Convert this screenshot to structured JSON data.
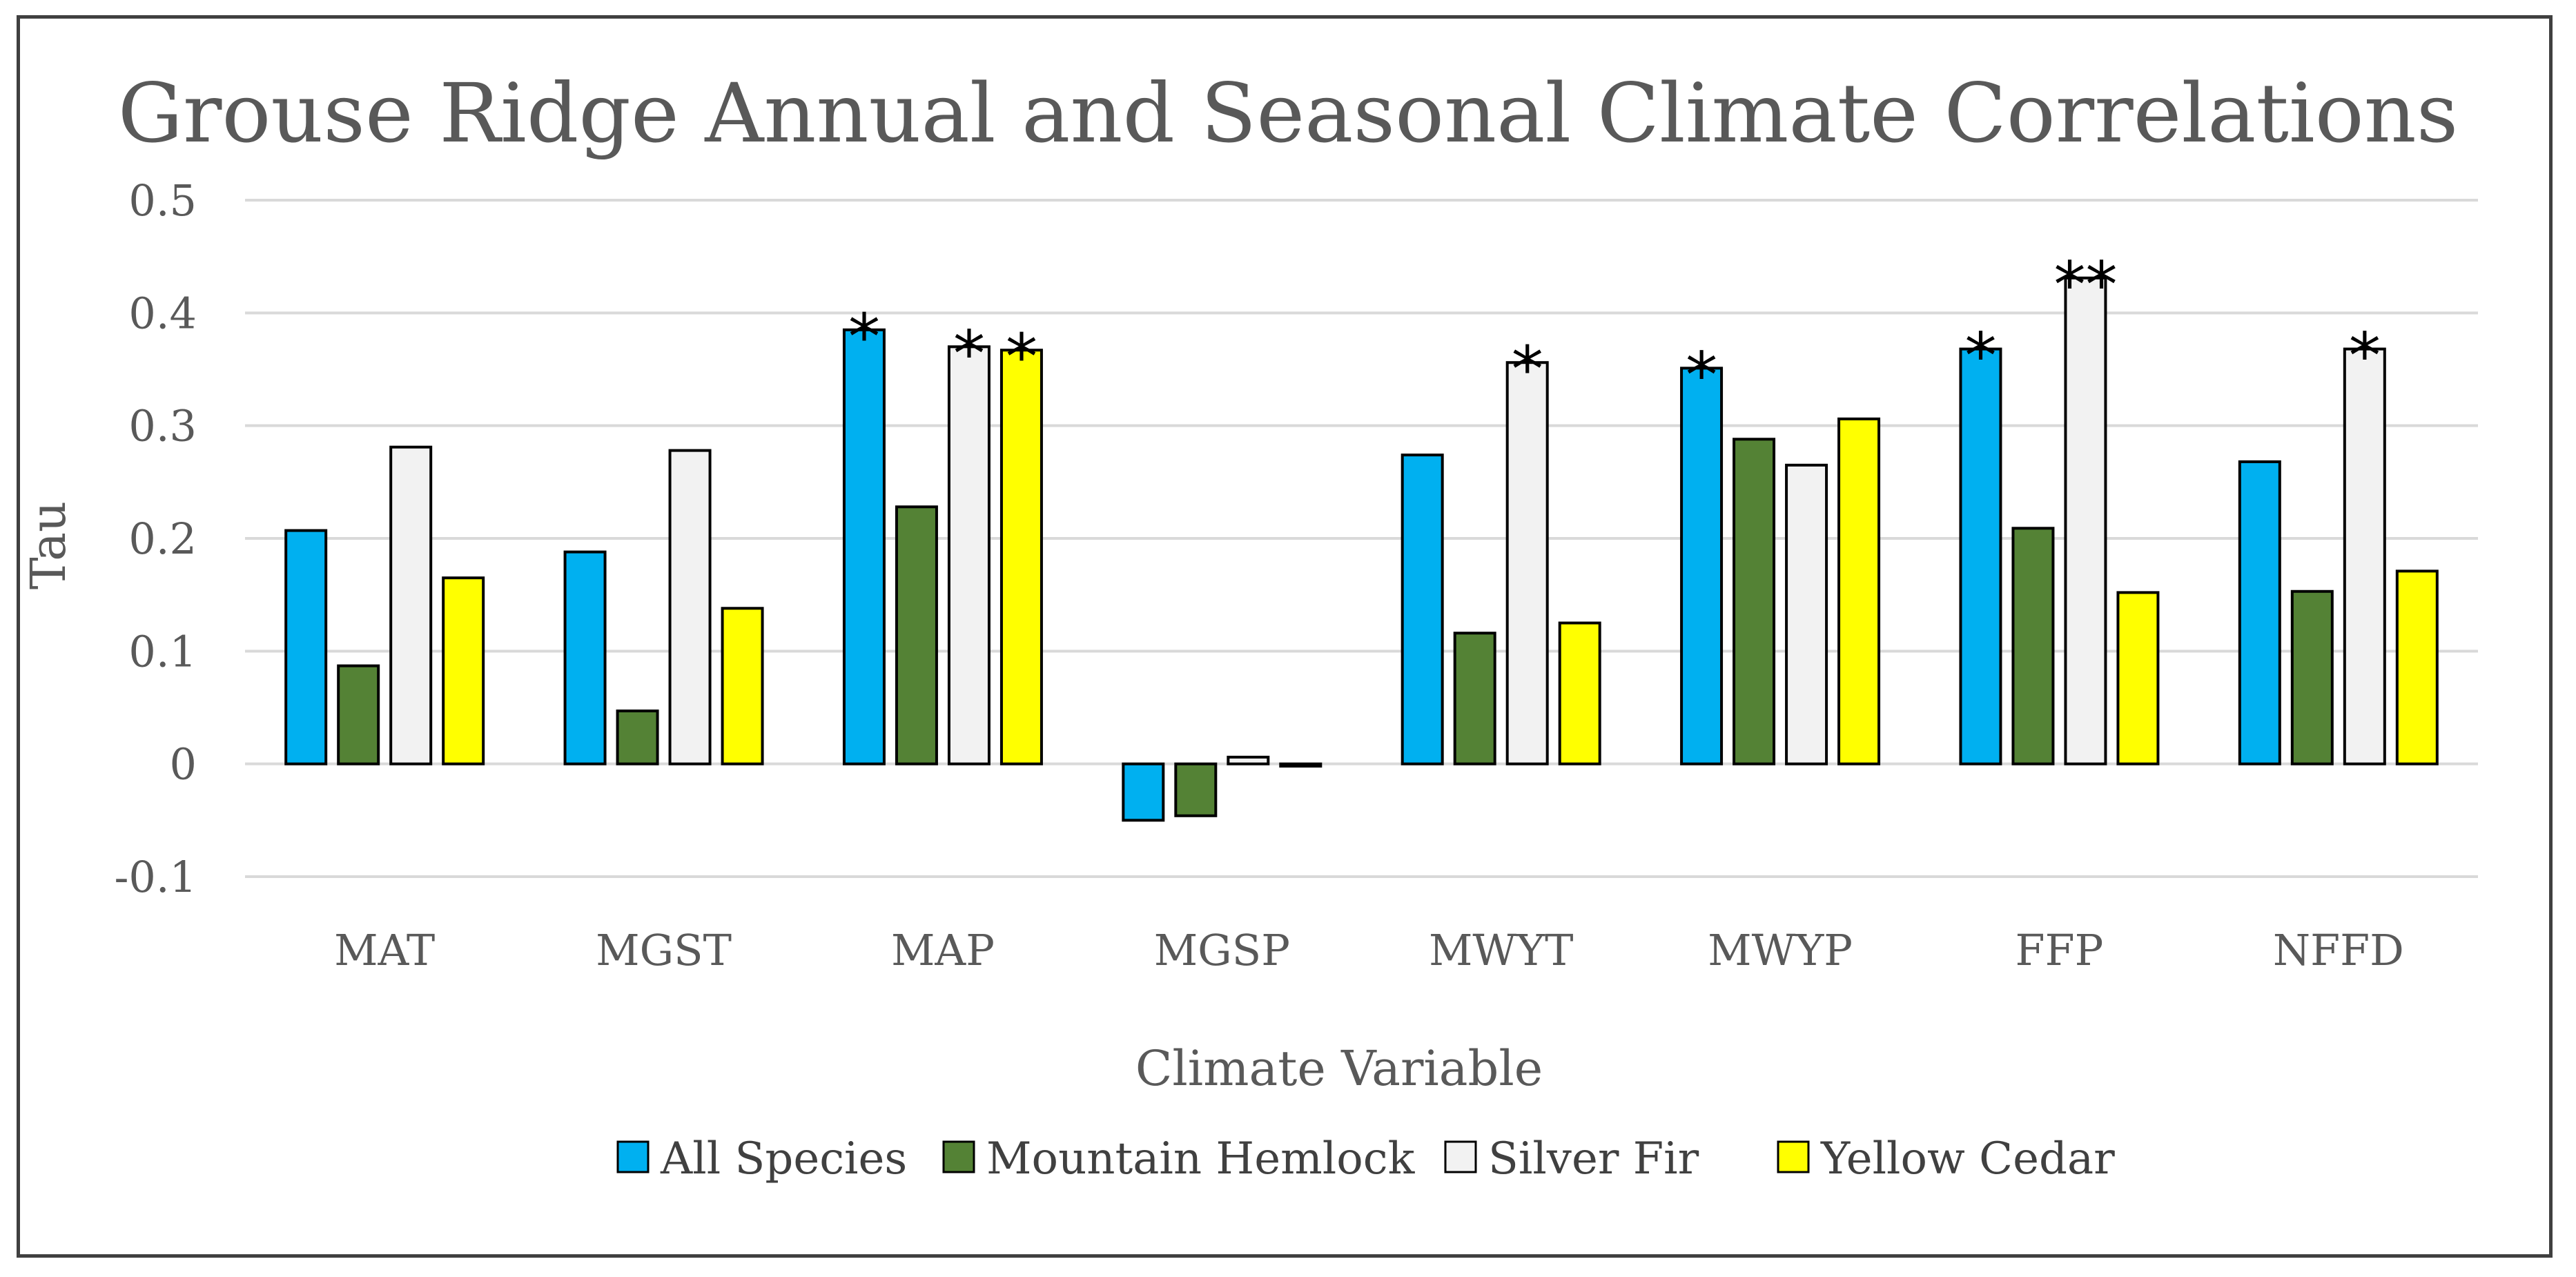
{
  "chart_data": {
    "type": "bar",
    "title": "Grouse Ridge Annual and Seasonal Climate Correlations",
    "xlabel": "Climate Variable",
    "ylabel": "Tau",
    "ylim": [
      -0.1,
      0.5
    ],
    "yticks": [
      "0.5",
      "0.4",
      "0.3",
      "0.2",
      "0.1",
      "0",
      "-0.1"
    ],
    "ytick_values": [
      0.5,
      0.4,
      0.3,
      0.2,
      0.1,
      0,
      -0.1
    ],
    "grid": true,
    "legend_position": "bottom",
    "categories": [
      "MAT",
      "MGST",
      "MAP",
      "MGSP",
      "MWYT",
      "MWYP",
      "FFP",
      "NFFD"
    ],
    "series": [
      {
        "name": "All Species",
        "color": "#00b0f0",
        "values": [
          0.207,
          0.188,
          0.385,
          -0.05,
          0.274,
          0.351,
          0.368,
          0.268
        ],
        "markers": [
          "",
          "",
          "*",
          "",
          "",
          "*",
          "*",
          ""
        ]
      },
      {
        "name": "Mountain Hemlock",
        "color": "#548235",
        "values": [
          0.087,
          0.047,
          0.228,
          -0.046,
          0.116,
          0.288,
          0.209,
          0.153
        ],
        "markers": [
          "",
          "",
          "",
          "",
          "",
          "",
          "",
          ""
        ]
      },
      {
        "name": "Silver Fir",
        "color": "#f2f2f2",
        "values": [
          0.281,
          0.278,
          0.37,
          0.006,
          0.356,
          0.265,
          0.431,
          0.368
        ],
        "markers": [
          "",
          "",
          "*",
          "",
          "*",
          "",
          "**",
          "*"
        ]
      },
      {
        "name": "Yellow Cedar",
        "color": "#ffff00",
        "values": [
          0.165,
          0.138,
          0.367,
          -0.002,
          0.125,
          0.306,
          0.152,
          0.171
        ],
        "markers": [
          "",
          "",
          "*",
          "",
          "",
          "",
          "",
          ""
        ]
      }
    ]
  }
}
